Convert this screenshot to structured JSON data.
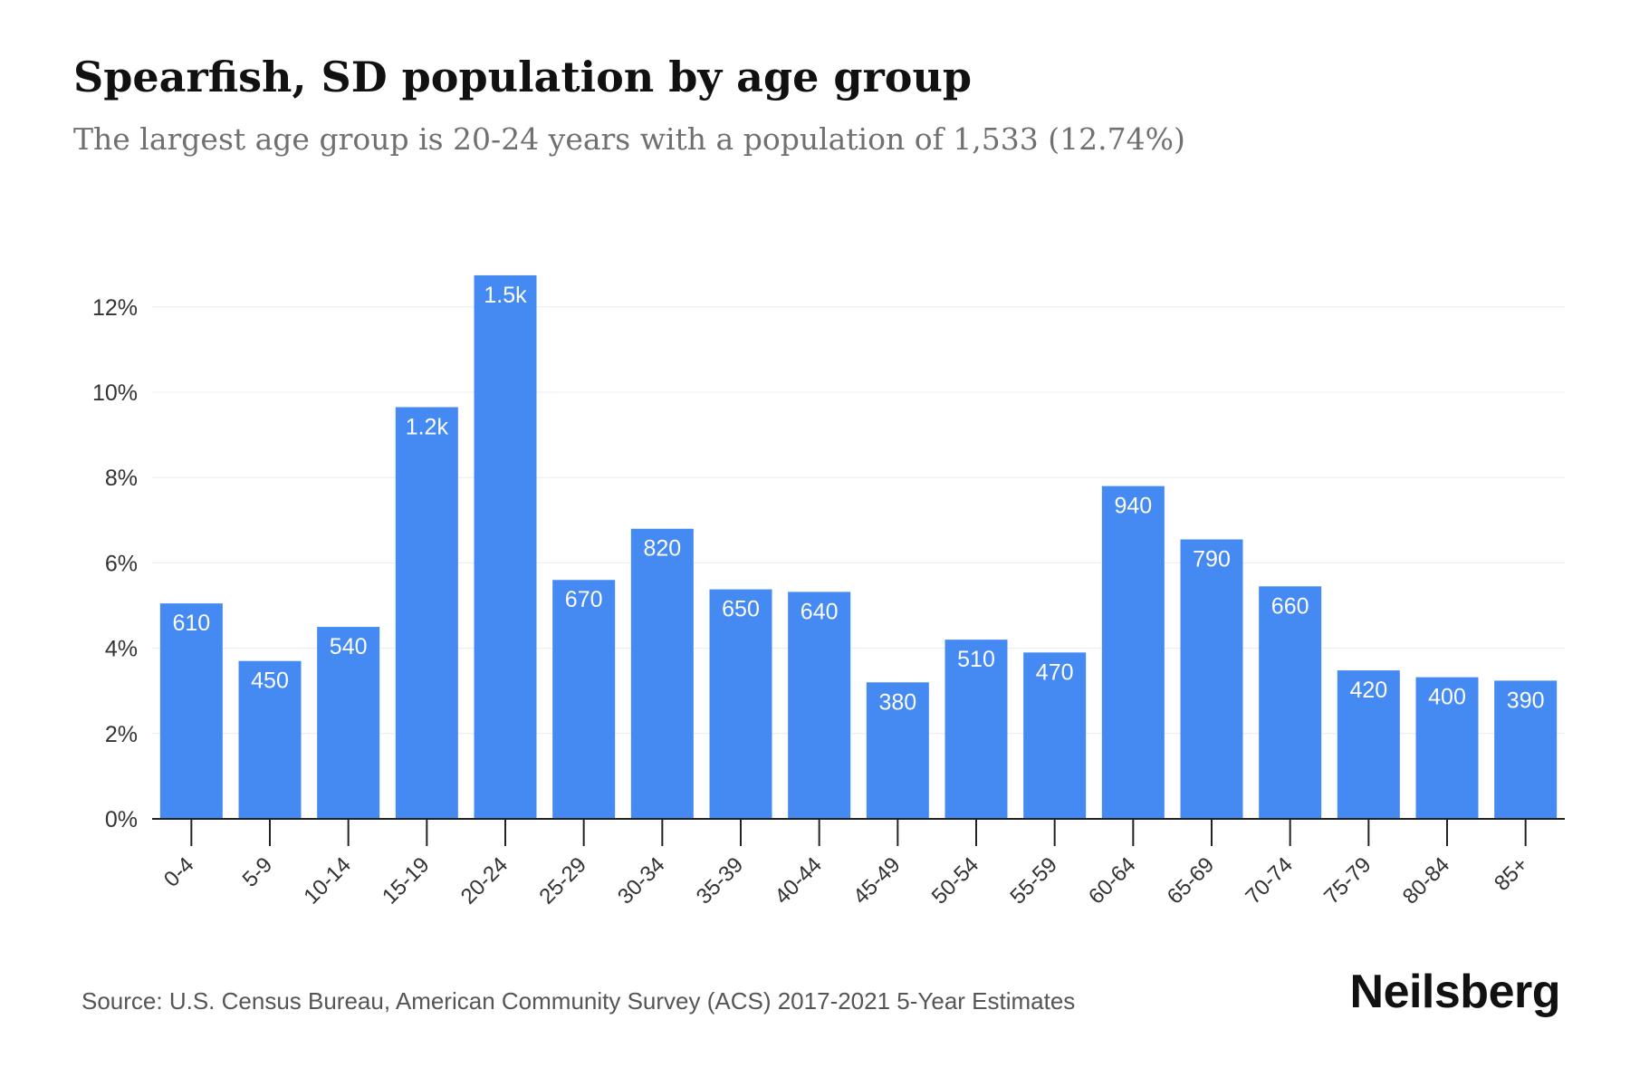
{
  "header": {
    "title": "Spearfish, SD population by age group",
    "subtitle": "The largest age group is 20-24 years with a population of 1,533 (12.74%)"
  },
  "footer": {
    "source": "Source: U.S. Census Bureau, American Community Survey (ACS) 2017-2021 5-Year Estimates",
    "brand": "Neilsberg"
  },
  "colors": {
    "bar": "#4589f3",
    "bar_label": "#ffffff",
    "axis": "#222222",
    "grid": "#ececec",
    "tick_text": "#333333"
  },
  "chart_data": {
    "type": "bar",
    "title": "Spearfish, SD population by age group",
    "subtitle": "The largest age group is 20-24 years with a population of 1,533 (12.74%)",
    "xlabel": "",
    "ylabel": "",
    "ylim": [
      0,
      13
    ],
    "y_ticks": [
      0,
      2,
      4,
      6,
      8,
      10,
      12
    ],
    "y_tick_labels": [
      "0%",
      "2%",
      "4%",
      "6%",
      "8%",
      "10%",
      "12%"
    ],
    "grid": true,
    "categories": [
      "0-4",
      "5-9",
      "10-14",
      "15-19",
      "20-24",
      "25-29",
      "30-34",
      "35-39",
      "40-44",
      "45-49",
      "50-54",
      "55-59",
      "60-64",
      "65-69",
      "70-74",
      "75-79",
      "80-84",
      "85+"
    ],
    "values": [
      5.05,
      3.7,
      4.5,
      9.65,
      12.74,
      5.6,
      6.8,
      5.38,
      5.32,
      3.2,
      4.2,
      3.9,
      7.8,
      6.55,
      5.45,
      3.48,
      3.32,
      3.24
    ],
    "data_labels": [
      "610",
      "450",
      "540",
      "1.2k",
      "1.5k",
      "670",
      "820",
      "650",
      "640",
      "380",
      "510",
      "470",
      "940",
      "790",
      "660",
      "420",
      "400",
      "390"
    ]
  }
}
